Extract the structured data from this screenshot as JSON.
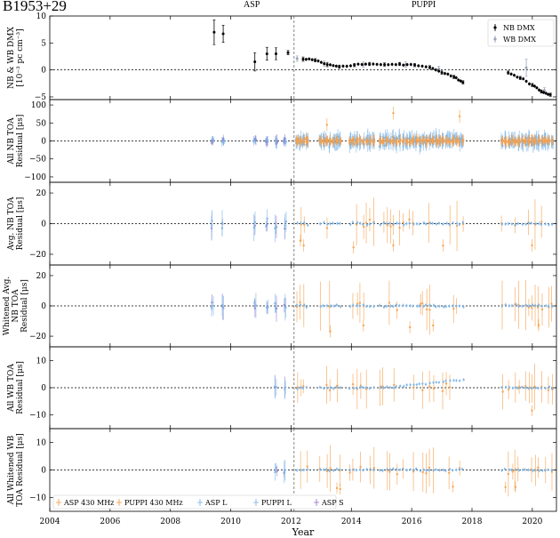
{
  "figure": {
    "pulsar": "B1953+29",
    "backend_labels": [
      "ASP",
      "PUPPI"
    ]
  },
  "colors": {
    "nb_dmx": "#000000",
    "wb_dmx": "#9aa4b8",
    "asp_430": "#f6a04c",
    "puppi_430": "#f6a04c",
    "asp_l": "#7fb6e6",
    "puppi_l": "#7fb6e6",
    "asp_s": "#9a7ccc"
  },
  "chart_data": {
    "type": "scatter",
    "xlabel": "Year",
    "xlim": [
      2004,
      2020.8
    ],
    "xticks": [
      "2004",
      "2006",
      "2008",
      "2010",
      "2012",
      "2014",
      "2016",
      "2018",
      "2020"
    ],
    "backend_transition_year": 2012.1,
    "panels": [
      {
        "id": "dmx",
        "ylabel": [
          "NB & WB DMX",
          "[10⁻³ pc cm⁻³]"
        ],
        "ylim": [
          -5.5,
          10
        ],
        "yticks": [
          "−5",
          "0",
          "5",
          "10"
        ],
        "legend": [
          "NB DMX",
          "WB DMX"
        ],
        "legend_position": "top-right",
        "nb_dmx": [
          {
            "x": 2009.45,
            "y": 7.0,
            "err": 2.3
          },
          {
            "x": 2009.75,
            "y": 6.7,
            "err": 1.6
          },
          {
            "x": 2010.8,
            "y": 1.5,
            "err": 1.7
          },
          {
            "x": 2011.2,
            "y": 3.0,
            "err": 1.2
          },
          {
            "x": 2011.5,
            "y": 3.0,
            "err": 1.1
          },
          {
            "x": 2011.9,
            "y": 3.2,
            "err": 0.4
          },
          {
            "x": 2012.4,
            "y": 2.0,
            "err": 0.4
          },
          {
            "x": 2012.8,
            "y": 1.8,
            "err": 0.3
          },
          {
            "x": 2013.2,
            "y": 1.0,
            "err": 0.4
          },
          {
            "x": 2013.6,
            "y": 0.6,
            "err": 0.3
          },
          {
            "x": 2014.1,
            "y": 0.9,
            "err": 0.3
          },
          {
            "x": 2014.6,
            "y": 1.1,
            "err": 0.3
          },
          {
            "x": 2015.1,
            "y": 1.0,
            "err": 0.3
          },
          {
            "x": 2015.6,
            "y": 1.1,
            "err": 0.3
          },
          {
            "x": 2016.1,
            "y": 0.9,
            "err": 0.3
          },
          {
            "x": 2016.6,
            "y": 0.5,
            "err": 0.3
          },
          {
            "x": 2017.0,
            "y": -0.5,
            "err": 0.3
          },
          {
            "x": 2017.4,
            "y": -1.3,
            "err": 0.3
          },
          {
            "x": 2017.7,
            "y": -2.3,
            "err": 0.3
          },
          {
            "x": 2019.2,
            "y": -0.5,
            "err": 0.3
          },
          {
            "x": 2019.6,
            "y": -1.5,
            "err": 0.3
          },
          {
            "x": 2020.0,
            "y": -2.8,
            "err": 0.3
          },
          {
            "x": 2020.3,
            "y": -4.0,
            "err": 0.3
          },
          {
            "x": 2020.6,
            "y": -4.6,
            "err": 0.3
          }
        ],
        "wb_dmx": [
          {
            "x": 2012.2,
            "y": 2.1,
            "err": 0.5
          },
          {
            "x": 2013.1,
            "y": 1.2,
            "err": 0.5
          },
          {
            "x": 2014.4,
            "y": 1.0,
            "err": 0.5
          },
          {
            "x": 2015.8,
            "y": 1.0,
            "err": 0.5
          },
          {
            "x": 2016.9,
            "y": 0.2,
            "err": 0.5
          },
          {
            "x": 2019.8,
            "y": 0.4,
            "err": 1.6
          },
          {
            "x": 2020.4,
            "y": -3.8,
            "err": 0.5
          }
        ]
      },
      {
        "id": "all-nb",
        "ylabel": [
          "All NB TOA",
          "Residual [μs]"
        ],
        "ylim": [
          -115,
          115
        ],
        "yticks": [
          "−100",
          "−50",
          "0",
          "50",
          "100"
        ],
        "scatter": {
          "amplitude": 18,
          "spike_amplitude": 80,
          "style": "dense"
        }
      },
      {
        "id": "avg-nb",
        "ylabel": [
          "Avg. NB TOA",
          "Residual [μs]"
        ],
        "ylim": [
          -27,
          27
        ],
        "yticks": [
          "−20",
          "0",
          "20"
        ],
        "scatter": {
          "amplitude": 10,
          "spike_amplitude": 18,
          "style": "sparse"
        }
      },
      {
        "id": "whitened-avg-nb",
        "ylabel": [
          "Whitened Avg.",
          "NB TOA",
          "Residual [μs]"
        ],
        "ylim": [
          -27,
          27
        ],
        "yticks": [
          "−20",
          "0",
          "20"
        ],
        "scatter": {
          "amplitude": 10,
          "spike_amplitude": 18,
          "style": "sparse"
        }
      },
      {
        "id": "all-wb",
        "ylabel": [
          "All WB TOA",
          "Residual [μs]"
        ],
        "ylim": [
          -15,
          15
        ],
        "yticks": [
          "−10",
          "0",
          "10"
        ],
        "scatter": {
          "amplitude": 5,
          "spike_amplitude": 9,
          "style": "sparse"
        }
      },
      {
        "id": "whitened-wb",
        "ylabel": [
          "All Whitened WB",
          "TOA Residual [μs]"
        ],
        "ylim": [
          -15,
          15
        ],
        "yticks": [
          "−10",
          "0",
          "10"
        ],
        "legend": [
          "ASP 430 MHz",
          "PUPPI 430 MHz",
          "ASP L",
          "PUPPI L",
          "ASP S"
        ],
        "legend_position": "bottom-left",
        "scatter": {
          "amplitude": 5,
          "spike_amplitude": 9,
          "style": "sparse"
        }
      }
    ]
  }
}
